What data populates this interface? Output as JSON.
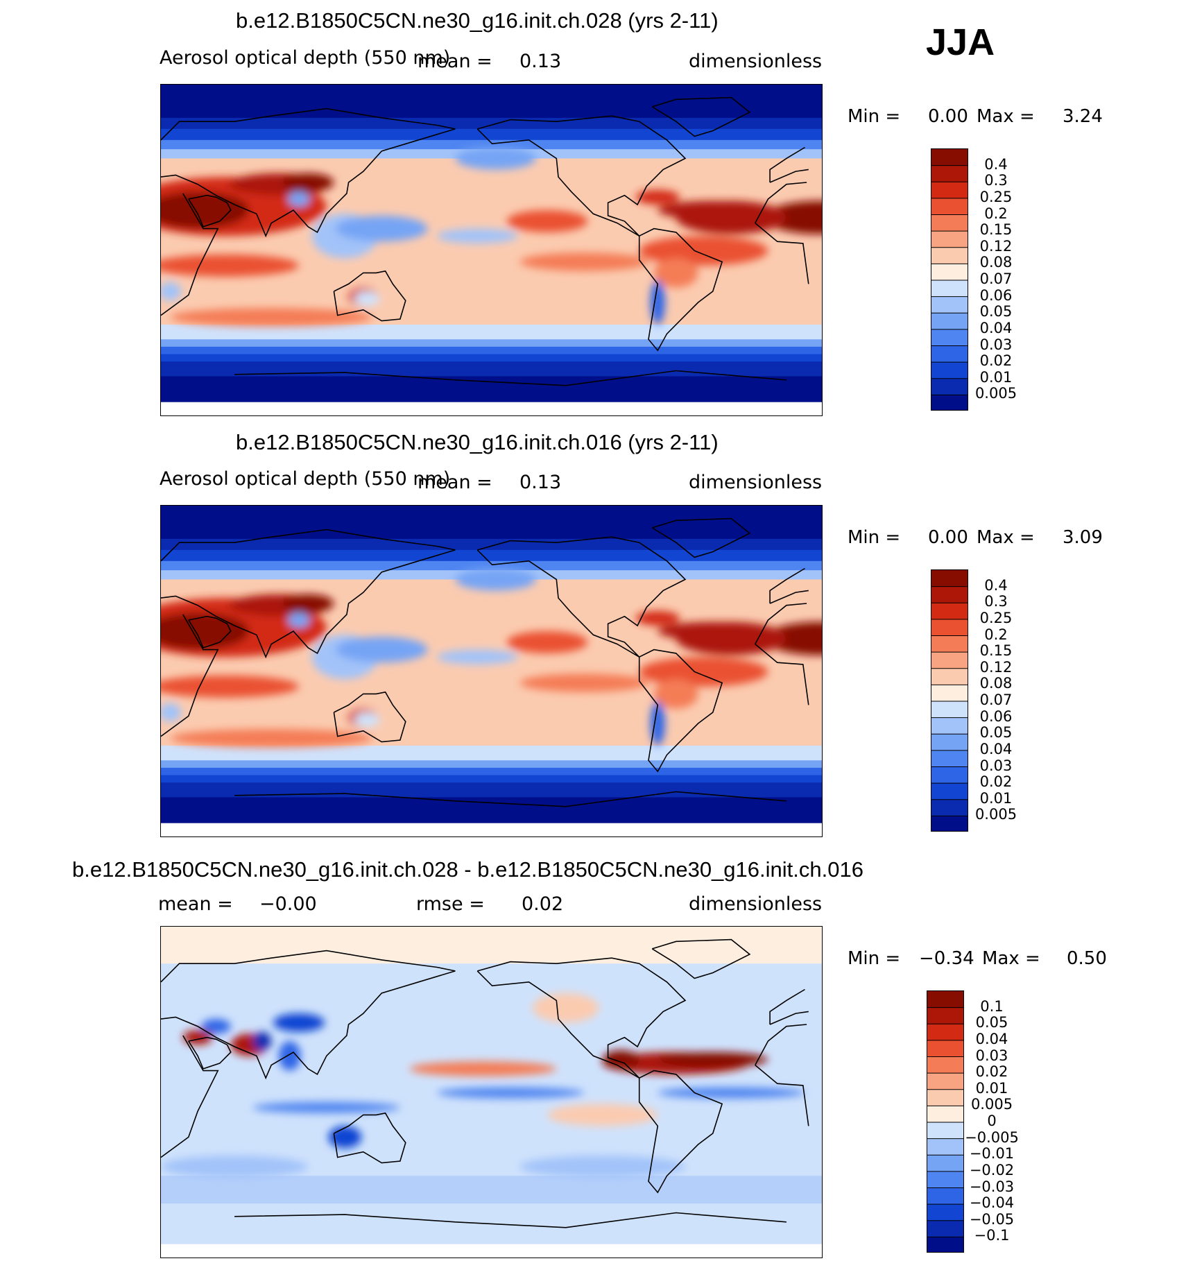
{
  "season": "JJA",
  "colors": {
    "aod": [
      "#000e8a",
      "#0a2bb0",
      "#1145d2",
      "#2d65e6",
      "#4f85f0",
      "#76a4f5",
      "#a2c3f9",
      "#cfe2fc",
      "#fdeee0",
      "#fbcbb0",
      "#f8a483",
      "#f47d57",
      "#ea5130",
      "#d32a13",
      "#ac1708",
      "#860d00"
    ],
    "diff": [
      "#000e8a",
      "#0a2bb0",
      "#1145d2",
      "#2d65e6",
      "#4f85f0",
      "#76a4f5",
      "#a2c3f9",
      "#cfe2fc",
      "#fdeee0",
      "#fbcbb0",
      "#f8a483",
      "#f47d57",
      "#ea5130",
      "#d32a13",
      "#ac1708",
      "#860d00"
    ]
  },
  "panels": [
    {
      "title": "b.e12.B1850C5CN.ne30_g16.init.ch.028 (yrs 2-11)",
      "left_label": "Aerosol optical depth (550 nm)",
      "mean_label": "mean =",
      "mean_value": "0.13",
      "units": "dimensionless",
      "min_label": "Min =",
      "min_value": "0.00",
      "max_label": "Max =",
      "max_value": "3.24",
      "palette": "aod",
      "levels": [
        "0.4",
        "0.3",
        "0.25",
        "0.2",
        "0.15",
        "0.12",
        "0.08",
        "0.07",
        "0.06",
        "0.05",
        "0.04",
        "0.03",
        "0.02",
        "0.01",
        "0.005"
      ]
    },
    {
      "title": "b.e12.B1850C5CN.ne30_g16.init.ch.016 (yrs 2-11)",
      "left_label": "Aerosol optical depth (550 nm)",
      "mean_label": "mean =",
      "mean_value": "0.13",
      "units": "dimensionless",
      "min_label": "Min =",
      "min_value": "0.00",
      "max_label": "Max =",
      "max_value": "3.09",
      "palette": "aod",
      "levels": [
        "0.4",
        "0.3",
        "0.25",
        "0.2",
        "0.15",
        "0.12",
        "0.08",
        "0.07",
        "0.06",
        "0.05",
        "0.04",
        "0.03",
        "0.02",
        "0.01",
        "0.005"
      ]
    },
    {
      "title": "b.e12.B1850C5CN.ne30_g16.init.ch.028 - b.e12.B1850C5CN.ne30_g16.init.ch.016",
      "mean_label": "mean =",
      "mean_value": "−0.00",
      "rmse_label": "rmse =",
      "rmse_value": "0.02",
      "units": "dimensionless",
      "min_label": "Min =",
      "min_value": "−0.34",
      "max_label": "Max =",
      "max_value": "0.50",
      "palette": "diff",
      "levels": [
        "0.1",
        "0.05",
        "0.04",
        "0.03",
        "0.02",
        "0.01",
        "0.005",
        "0",
        "−0.005",
        "−0.01",
        "−0.02",
        "−0.03",
        "−0.04",
        "−0.05",
        "−0.1"
      ]
    }
  ],
  "chart_data": [
    {
      "type": "heatmap",
      "title": "b.e12.B1850C5CN.ne30_g16.init.ch.028 (yrs 2-11)",
      "subtitle": "Aerosol optical depth (550 nm)",
      "units": "dimensionless",
      "mean": 0.13,
      "min": 0.0,
      "max": 3.24,
      "colorbar_levels": [
        0.005,
        0.01,
        0.02,
        0.03,
        0.04,
        0.05,
        0.06,
        0.07,
        0.08,
        0.12,
        0.15,
        0.2,
        0.25,
        0.3,
        0.4
      ],
      "legend": "right"
    },
    {
      "type": "heatmap",
      "title": "b.e12.B1850C5CN.ne30_g16.init.ch.016 (yrs 2-11)",
      "subtitle": "Aerosol optical depth (550 nm)",
      "units": "dimensionless",
      "mean": 0.13,
      "min": 0.0,
      "max": 3.09,
      "colorbar_levels": [
        0.005,
        0.01,
        0.02,
        0.03,
        0.04,
        0.05,
        0.06,
        0.07,
        0.08,
        0.12,
        0.15,
        0.2,
        0.25,
        0.3,
        0.4
      ],
      "legend": "right"
    },
    {
      "type": "heatmap",
      "title": "b.e12.B1850C5CN.ne30_g16.init.ch.028 - b.e12.B1850C5CN.ne30_g16.init.ch.016",
      "units": "dimensionless",
      "mean": -0.0,
      "rmse": 0.02,
      "min": -0.34,
      "max": 0.5,
      "colorbar_levels": [
        -0.1,
        -0.05,
        -0.04,
        -0.03,
        -0.02,
        -0.01,
        -0.005,
        0,
        0.005,
        0.01,
        0.02,
        0.03,
        0.04,
        0.05,
        0.1
      ],
      "legend": "right"
    }
  ]
}
